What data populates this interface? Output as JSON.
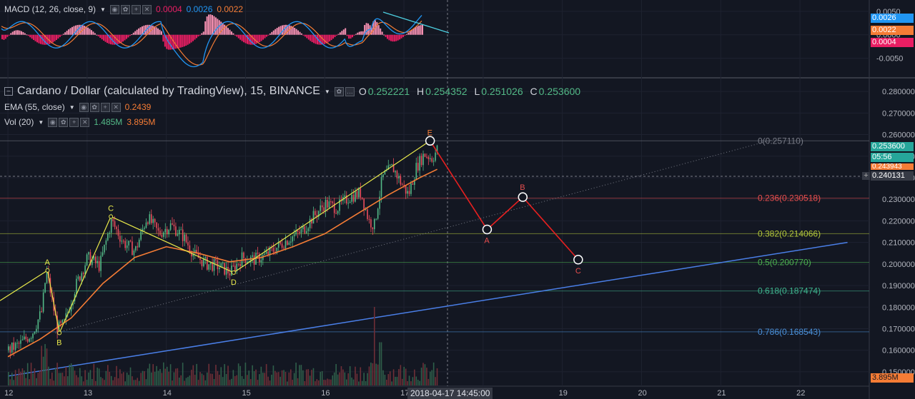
{
  "macd_legend": {
    "label": "MACD (12, 26, close, 9)",
    "hist": "0.0004",
    "macd": "0.0026",
    "signal": "0.0022"
  },
  "main_legend": {
    "title": "Cardano / Dollar (calculated by TradingView), 15, BINANCE",
    "o_label": "O",
    "o": "0.252221",
    "h_label": "H",
    "h": "0.254352",
    "l_label": "L",
    "l": "0.251026",
    "c_label": "C",
    "c": "0.253600"
  },
  "ema_legend": {
    "label": "EMA (55, close)",
    "value": "0.2439"
  },
  "vol_legend": {
    "label": "Vol (20)",
    "v1": "1.485M",
    "v2": "3.895M"
  },
  "price_axis_ticks": [
    "0.280000",
    "0.270000",
    "0.260000",
    "0.250000",
    "0.240000",
    "0.230000",
    "0.220000",
    "0.210000",
    "0.200000",
    "0.190000",
    "0.180000",
    "0.170000",
    "0.160000",
    "0.150000"
  ],
  "macd_axis_ticks": [
    "0.0050",
    "0.0000",
    "-0.0050"
  ],
  "time_ticks": [
    "12",
    "13",
    "14",
    "15",
    "16",
    "17",
    "18",
    "19",
    "20",
    "21",
    "22"
  ],
  "crosshair_time": "2018-04-17 14:45:00",
  "price_tags": {
    "last": "0.253600",
    "countdown": "05:56",
    "ema": "0.243943",
    "crosshair": "0.240131",
    "volume": "3.895M",
    "macd": "0.0026",
    "signal": "0.0022",
    "hist": "0.0004"
  },
  "fib_levels": [
    {
      "label": "0(0.257110)",
      "value": 0.25711,
      "color": "#787b86"
    },
    {
      "label": "0.236(0.230518)",
      "value": 0.230518,
      "color": "#e84e4e"
    },
    {
      "label": "0.382(0.214066)",
      "value": 0.214066,
      "color": "#b5c93a"
    },
    {
      "label": "0.5(0.200770)",
      "value": 0.20077,
      "color": "#4caf50"
    },
    {
      "label": "0.618(0.187474)",
      "value": 0.187474,
      "color": "#3fb58e"
    },
    {
      "label": "0.786(0.168543)",
      "value": 0.168543,
      "color": "#4a90d9"
    }
  ],
  "wave_labels": {
    "a": "A",
    "b": "B",
    "c": "C",
    "d": "D",
    "e": "E",
    "pa": "A",
    "pb": "B",
    "pc": "C"
  },
  "chart_data": {
    "type": "line",
    "price_range": [
      0.145,
      0.285
    ],
    "macd_range": [
      -0.0075,
      0.0062
    ],
    "x_range": [
      12,
      22.6
    ],
    "time_axis": "days (April 2018)",
    "colors": {
      "up": "#53b987",
      "down": "#eb4d5c",
      "ema": "#f57c35",
      "wave": "#e8e84a",
      "projection": "#e62020",
      "trendline": "#4a7fe8",
      "macd": "#2196f3",
      "signal": "#f57c35",
      "hist": "#e91e63"
    },
    "price_series_approx": [
      [
        12.0,
        0.16
      ],
      [
        12.15,
        0.163
      ],
      [
        12.3,
        0.168
      ],
      [
        12.42,
        0.178
      ],
      [
        12.48,
        0.197
      ],
      [
        12.55,
        0.183
      ],
      [
        12.62,
        0.17
      ],
      [
        12.7,
        0.172
      ],
      [
        12.85,
        0.19
      ],
      [
        13.0,
        0.203
      ],
      [
        13.15,
        0.199
      ],
      [
        13.3,
        0.22
      ],
      [
        13.45,
        0.21
      ],
      [
        13.6,
        0.206
      ],
      [
        13.75,
        0.222
      ],
      [
        13.9,
        0.214
      ],
      [
        14.05,
        0.218
      ],
      [
        14.2,
        0.213
      ],
      [
        14.35,
        0.204
      ],
      [
        14.5,
        0.2
      ],
      [
        14.65,
        0.199
      ],
      [
        14.8,
        0.196
      ],
      [
        14.95,
        0.203
      ],
      [
        15.1,
        0.202
      ],
      [
        15.25,
        0.204
      ],
      [
        15.4,
        0.208
      ],
      [
        15.55,
        0.212
      ],
      [
        15.7,
        0.215
      ],
      [
        15.85,
        0.222
      ],
      [
        16.0,
        0.228
      ],
      [
        16.15,
        0.226
      ],
      [
        16.3,
        0.231
      ],
      [
        16.45,
        0.233
      ],
      [
        16.55,
        0.22
      ],
      [
        16.62,
        0.218
      ],
      [
        16.72,
        0.24
      ],
      [
        16.85,
        0.245
      ],
      [
        16.95,
        0.238
      ],
      [
        17.05,
        0.232
      ],
      [
        17.15,
        0.245
      ],
      [
        17.25,
        0.251
      ],
      [
        17.35,
        0.249
      ],
      [
        17.42,
        0.2536
      ]
    ],
    "ema_series_approx": [
      [
        12.0,
        0.157
      ],
      [
        12.4,
        0.165
      ],
      [
        12.8,
        0.175
      ],
      [
        13.2,
        0.191
      ],
      [
        13.6,
        0.203
      ],
      [
        14.0,
        0.208
      ],
      [
        14.4,
        0.205
      ],
      [
        14.8,
        0.201
      ],
      [
        15.2,
        0.203
      ],
      [
        15.6,
        0.208
      ],
      [
        16.0,
        0.214
      ],
      [
        16.4,
        0.223
      ],
      [
        16.8,
        0.232
      ],
      [
        17.2,
        0.24
      ],
      [
        17.42,
        0.2439
      ]
    ],
    "wave_points": [
      {
        "label": "A",
        "x": 12.5,
        "y": 0.197
      },
      {
        "label": "B",
        "x": 12.65,
        "y": 0.168
      },
      {
        "label": "C",
        "x": 13.3,
        "y": 0.222
      },
      {
        "label": "D",
        "x": 14.85,
        "y": 0.196
      },
      {
        "label": "E",
        "x": 17.33,
        "y": 0.2571
      }
    ],
    "projection_points": [
      {
        "label": "E",
        "x": 17.33,
        "y": 0.2571
      },
      {
        "label": "A",
        "x": 18.05,
        "y": 0.216
      },
      {
        "label": "B",
        "x": 18.5,
        "y": 0.231
      },
      {
        "label": "C",
        "x": 19.2,
        "y": 0.202
      }
    ],
    "trendline": {
      "from": [
        12.0,
        0.148
      ],
      "to": [
        22.6,
        0.21
      ]
    },
    "dotted_trendline": {
      "from": [
        12.6,
        0.168
      ],
      "to": [
        21.7,
        0.258
      ]
    },
    "volume_peak": "3.895M"
  }
}
